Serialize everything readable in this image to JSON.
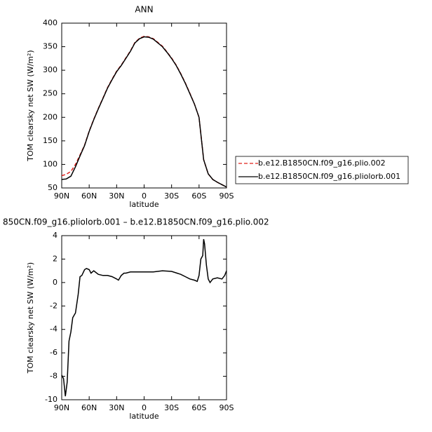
{
  "chart_data": [
    {
      "type": "line",
      "title": "ANN",
      "x_label": "latitude",
      "y_label": "TOM clearsky net SW (W/m²)",
      "x": [
        90,
        85,
        80,
        75,
        70,
        65,
        60,
        55,
        50,
        45,
        40,
        35,
        30,
        25,
        20,
        15,
        10,
        5,
        0,
        -5,
        -10,
        -15,
        -20,
        -25,
        -30,
        -35,
        -40,
        -45,
        -50,
        -55,
        -60,
        -65,
        -70,
        -75,
        -80,
        -85,
        -90
      ],
      "xlim": [
        90,
        -90
      ],
      "xticks": [
        {
          "value": 90,
          "label": "90N"
        },
        {
          "value": 60,
          "label": "60N"
        },
        {
          "value": 30,
          "label": "30N"
        },
        0,
        {
          "value": -30,
          "label": "30S"
        },
        {
          "value": -60,
          "label": "60S"
        },
        {
          "value": -90,
          "label": "90S"
        }
      ],
      "ylim": [
        50,
        400
      ],
      "yticks": [
        50,
        100,
        150,
        200,
        250,
        300,
        350,
        400
      ],
      "series": [
        {
          "name": "b.e12.B1850CN.f09_g16.plio.002",
          "color": "#e0201b",
          "dash": true,
          "values": [
            76,
            79,
            85,
            100,
            120,
            141,
            171,
            196,
            219,
            241,
            263,
            281,
            298,
            311,
            326,
            341,
            359,
            368,
            372,
            371,
            367,
            359,
            351,
            339,
            326,
            311,
            293,
            273,
            251,
            228,
            200,
            110,
            80,
            68,
            62,
            57,
            52
          ]
        },
        {
          "name": "b.e12.B1850CN.f09_g16.pliolorb.001",
          "color": "#000000",
          "dash": false,
          "values": [
            68,
            69,
            75,
            95,
            118,
            140,
            170,
            195,
            218,
            240,
            262,
            280,
            297,
            310,
            325,
            340,
            358,
            367,
            371,
            370,
            366,
            358,
            350,
            338,
            325,
            310,
            292,
            272,
            250,
            228,
            200,
            110,
            80,
            68,
            62,
            57,
            52
          ]
        }
      ]
    },
    {
      "type": "line",
      "title": "850CN.f09_g16.pliolorb.001 – b.e12.B1850CN.f09_g16.plio.002",
      "x_label": "latitude",
      "y_label": "TOM clearsky net SW (W/m²)",
      "x": [
        90,
        88,
        86,
        84,
        82,
        80,
        78,
        75,
        72,
        70,
        68,
        65,
        63,
        60,
        58,
        55,
        50,
        45,
        40,
        35,
        30,
        28,
        25,
        22,
        20,
        15,
        10,
        5,
        0,
        -5,
        -10,
        -20,
        -30,
        -40,
        -45,
        -50,
        -55,
        -58,
        -60,
        -62,
        -64,
        -65,
        -66,
        -68,
        -70,
        -72,
        -75,
        -80,
        -85,
        -88,
        -90
      ],
      "xlim": [
        90,
        -90
      ],
      "xticks": [
        {
          "value": 90,
          "label": "90N"
        },
        {
          "value": 60,
          "label": "60N"
        },
        {
          "value": 30,
          "label": "30N"
        },
        0,
        {
          "value": -30,
          "label": "30S"
        },
        {
          "value": -60,
          "label": "60S"
        },
        {
          "value": -90,
          "label": "90S"
        }
      ],
      "ylim": [
        -10,
        4
      ],
      "yticks": [
        -10,
        -8,
        -6,
        -4,
        -2,
        0,
        2,
        4
      ],
      "series": [
        {
          "color": "#000000",
          "dash": false,
          "values": [
            -7.9,
            -8.2,
            -9.7,
            -8.5,
            -5,
            -4.2,
            -3,
            -2.6,
            -1,
            0.5,
            0.6,
            1.1,
            1.2,
            1.1,
            0.8,
            1,
            0.7,
            0.6,
            0.6,
            0.5,
            0.3,
            0.2,
            0.6,
            0.8,
            0.8,
            0.9,
            0.9,
            0.9,
            0.9,
            0.9,
            0.9,
            1,
            0.95,
            0.7,
            0.5,
            0.3,
            0.2,
            0.1,
            0.6,
            2,
            2.3,
            3.7,
            3.3,
            1.5,
            0.3,
            0,
            0.3,
            0.4,
            0.3,
            0.6,
            1
          ]
        }
      ]
    }
  ]
}
